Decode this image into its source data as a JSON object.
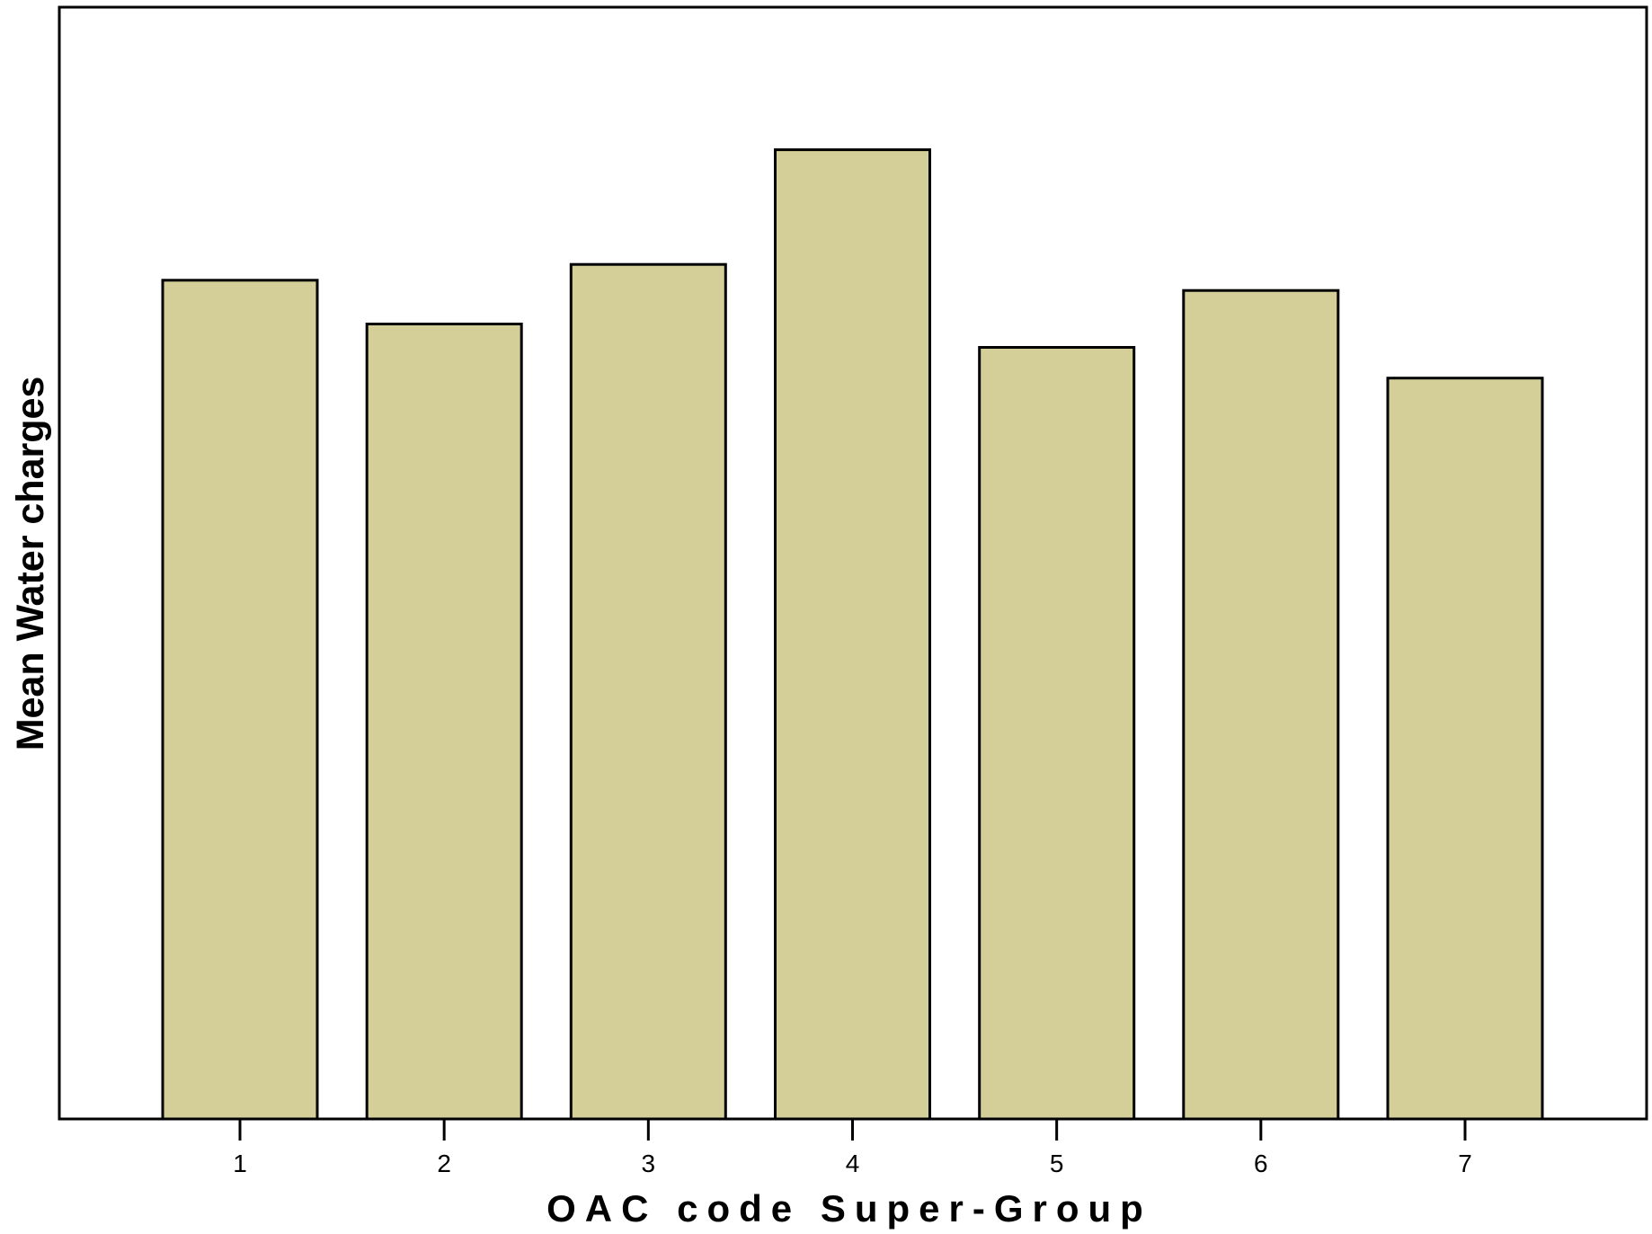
{
  "chart_data": {
    "type": "bar",
    "title": "",
    "xlabel": "OAC code Super-Group",
    "ylabel": "Mean Water charges",
    "categories": [
      "1",
      "2",
      "3",
      "4",
      "5",
      "6",
      "7"
    ],
    "values": [
      90.0,
      85.3,
      91.7,
      104.0,
      82.8,
      88.9,
      79.5
    ],
    "ylim": [
      0,
      119.3
    ],
    "y_tick_labels_shown": false,
    "grid": false,
    "legend": "none",
    "bar_color": "#d4cf98",
    "bar_edge_color": "#000000"
  }
}
